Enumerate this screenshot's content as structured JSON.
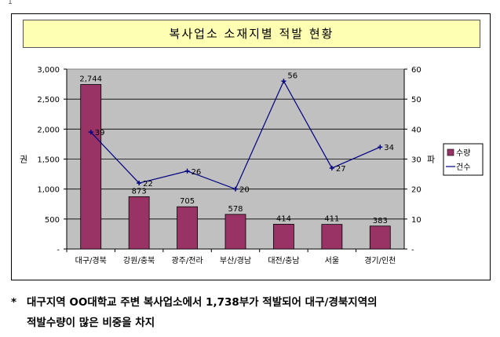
{
  "corner_mark": "1",
  "note": {
    "star": "*",
    "line1": "대구지역 OO대학교 주변 복사업소에서 1,738부가 적발되어 대구/경북지역의",
    "line2": "적발수량이 많은 비중을 차지"
  },
  "chart_data": {
    "type": "bar",
    "title": "복사업소 소재지별 적발 현황",
    "categories": [
      "대구/경북",
      "강원/충북",
      "광주/전라",
      "부산/경남",
      "대전/충남",
      "서울",
      "경기/인천"
    ],
    "series": [
      {
        "name": "수량",
        "type": "bar",
        "axis": "left",
        "color": "#993366",
        "values": [
          2744,
          873,
          705,
          578,
          414,
          411,
          383
        ],
        "labels": [
          "2,744",
          "873",
          "705",
          "578",
          "414",
          "411",
          "383"
        ]
      },
      {
        "name": "건수",
        "type": "line",
        "axis": "right",
        "color": "#000080",
        "values": [
          39,
          22,
          26,
          20,
          56,
          27,
          34
        ],
        "labels": [
          "39",
          "22",
          "26",
          "20",
          "56",
          "27",
          "34"
        ]
      }
    ],
    "y_left": {
      "label": "권",
      "ylim": [
        0,
        3000
      ],
      "ticks": [
        "-",
        "500",
        "1,000",
        "1,500",
        "2,000",
        "2,500",
        "3,000"
      ]
    },
    "y_right": {
      "label": "파",
      "ylim": [
        0,
        60
      ],
      "ticks": [
        "-",
        "10",
        "20",
        "30",
        "40",
        "50",
        "60"
      ]
    },
    "plot_background": "#c0c0c0",
    "grid": true,
    "legend": "right"
  }
}
